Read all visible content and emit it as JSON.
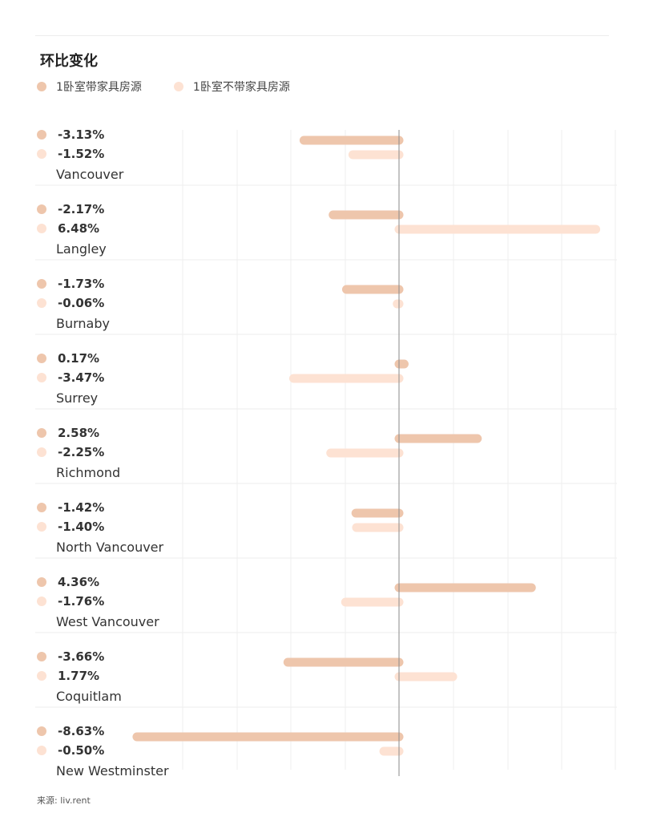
{
  "chart_data": {
    "type": "bar",
    "orientation": "horizontal",
    "title": "环比变化",
    "source": "来源: liv.rent",
    "xlim": [
      -10,
      10
    ],
    "series": [
      {
        "name": "1卧室带家具房源",
        "color": "#eec6ac"
      },
      {
        "name": "1卧室不带家具房源",
        "color": "#fde2d3"
      }
    ],
    "categories": [
      {
        "name": "Vancouver",
        "values": [
          -3.13,
          -1.52
        ],
        "labels": [
          "-3.13%",
          "-1.52%"
        ]
      },
      {
        "name": "Langley",
        "values": [
          -2.17,
          6.48
        ],
        "labels": [
          "-2.17%",
          "6.48%"
        ]
      },
      {
        "name": "Burnaby",
        "values": [
          -1.73,
          -0.06
        ],
        "labels": [
          "-1.73%",
          "-0.06%"
        ]
      },
      {
        "name": "Surrey",
        "values": [
          0.17,
          -3.47
        ],
        "labels": [
          "0.17%",
          "-3.47%"
        ]
      },
      {
        "name": "Richmond",
        "values": [
          2.58,
          -2.25
        ],
        "labels": [
          "2.58%",
          "-2.25%"
        ]
      },
      {
        "name": "North Vancouver",
        "values": [
          -1.42,
          -1.4
        ],
        "labels": [
          "-1.42%",
          "-1.40%"
        ]
      },
      {
        "name": "West Vancouver",
        "values": [
          4.36,
          -1.76
        ],
        "labels": [
          "4.36%",
          "-1.76%"
        ]
      },
      {
        "name": "Coquitlam",
        "values": [
          -3.66,
          1.77
        ],
        "labels": [
          "-3.66%",
          "1.77%"
        ]
      },
      {
        "name": "New Westminster",
        "values": [
          -8.63,
          -0.5
        ],
        "labels": [
          "-8.63%",
          "-0.50%"
        ]
      }
    ]
  }
}
